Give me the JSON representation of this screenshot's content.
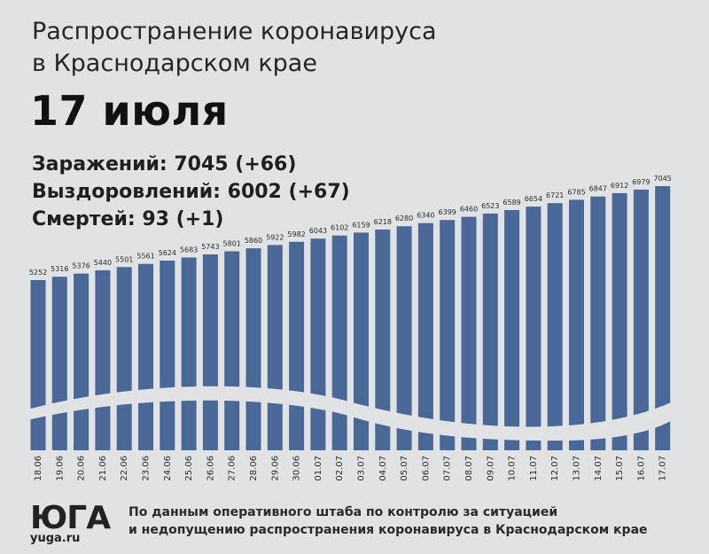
{
  "header": {
    "title_line1": "Распространение коронавируса",
    "title_line2": "в Краснодарском крае",
    "date": "17 июля"
  },
  "stats": {
    "infected": "Заражений: 7045 (+66)",
    "recovered": "Выздоровлений: 6002 (+67)",
    "deaths": "Смертей: 93 (+1)"
  },
  "footer": {
    "logo": "ЮГА",
    "site": "yuga.ru",
    "source_line1": "По данным оперативного штаба по контролю за ситуацией",
    "source_line2": "и недопущению распространения коронавируса в Краснодарском крае"
  },
  "colors": {
    "bar": "#4a6897",
    "background": "#e1e2e4",
    "text": "#1d1d1f"
  },
  "chart_data": {
    "type": "bar",
    "categories": [
      "18.06",
      "19.06",
      "20.06",
      "21.06",
      "22.06",
      "23.06",
      "24.06",
      "25.06",
      "26.06",
      "27.06",
      "28.06",
      "29.06",
      "30.06",
      "01.07",
      "02.07",
      "03.07",
      "04.07",
      "05.07",
      "06.07",
      "07.07",
      "08.07",
      "09.07",
      "10.07",
      "11.07",
      "12.07",
      "13.07",
      "14.07",
      "15.07",
      "16.07",
      "17.07"
    ],
    "series": [
      {
        "values": [
          5252,
          5316,
          5376,
          5440,
          5501,
          5561,
          5624,
          5683,
          5743,
          5801,
          5860,
          5922,
          5982,
          6043,
          6102,
          6159,
          6218,
          6280,
          6340,
          6399,
          6460,
          6523,
          6589,
          6654,
          6721,
          6785,
          6847,
          6912,
          6979,
          7045
        ]
      }
    ],
    "title": "",
    "xlabel": "",
    "ylabel": "",
    "grid": false,
    "legend": "none"
  }
}
